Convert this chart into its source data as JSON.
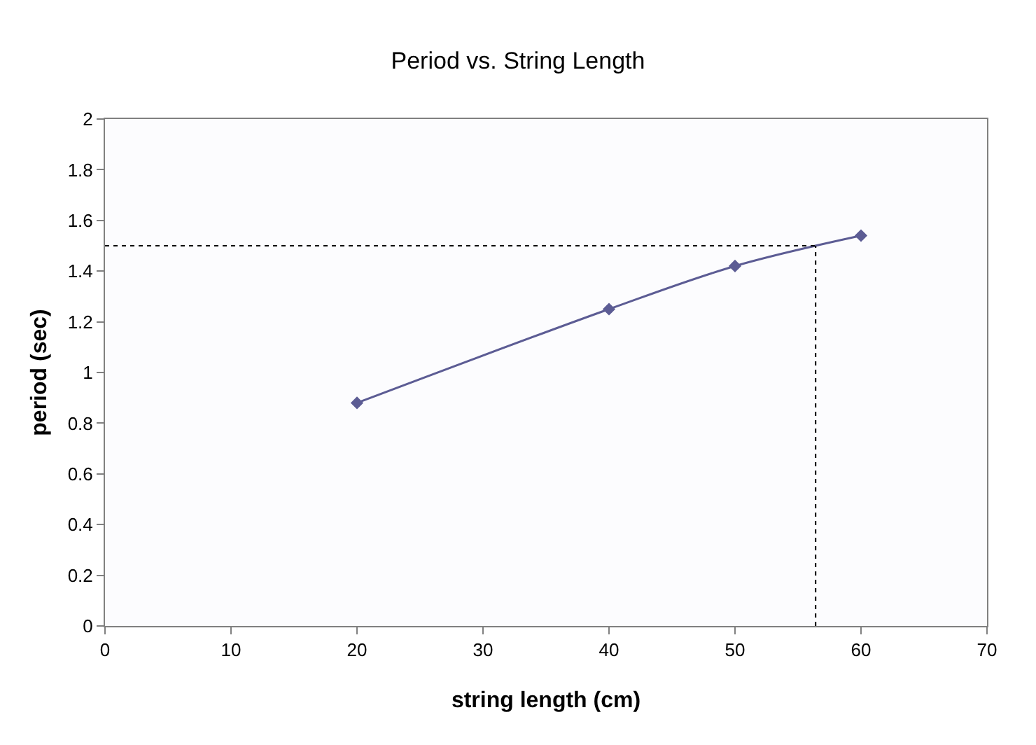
{
  "chart_data": {
    "type": "line",
    "title": "Period vs. String Length",
    "xlabel": "string length (cm)",
    "ylabel": "period (sec)",
    "x": [
      20,
      40,
      50,
      60
    ],
    "series": [
      {
        "color": "#5c5c94",
        "values": [
          0.88,
          1.25,
          1.42,
          1.54
        ]
      }
    ],
    "xlim": [
      0,
      70
    ],
    "xticks": [
      0,
      10,
      20,
      30,
      40,
      50,
      60,
      70
    ],
    "ylim": [
      0,
      2
    ],
    "yticks": [
      0,
      {
        "value": 0.2,
        "label": "0.2"
      },
      {
        "value": 0.4,
        "label": "0.4"
      },
      {
        "value": 0.6,
        "label": "0.6"
      },
      {
        "value": 0.8,
        "label": "0.8"
      },
      1,
      {
        "value": 1.2,
        "label": "1.2"
      },
      {
        "value": 1.4,
        "label": "1.4"
      },
      {
        "value": 1.6,
        "label": "1.6"
      },
      {
        "value": 1.8,
        "label": "1.8"
      },
      2
    ],
    "ref_lines": [
      {
        "axis": "y",
        "value": 1.5,
        "color": "#000000",
        "line_style": "dotted"
      },
      {
        "axis": "x",
        "value": 56.4,
        "color": "#000000",
        "line_style": "dotted"
      }
    ],
    "grid": false,
    "marker": "diamond",
    "line_style": "solid"
  }
}
